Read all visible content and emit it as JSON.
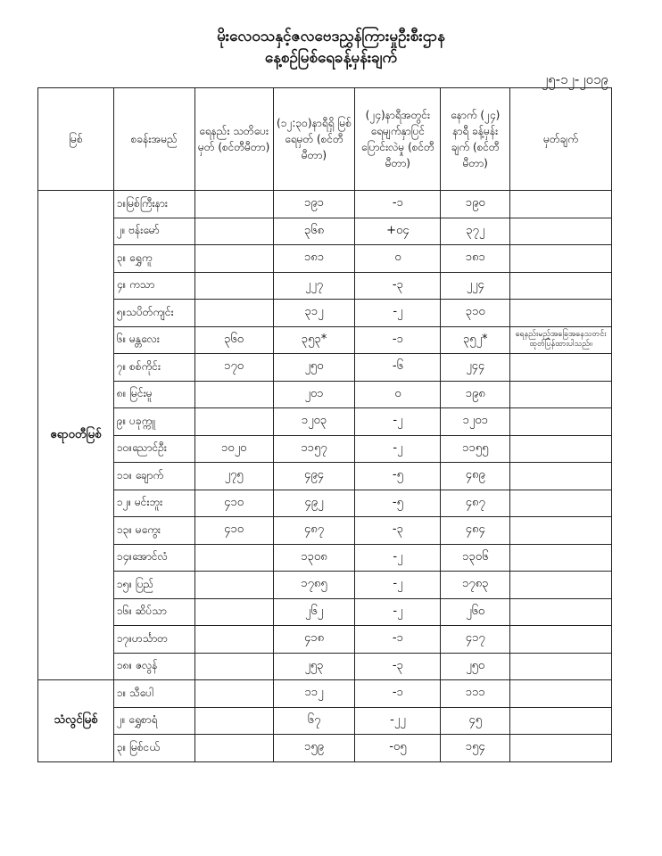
{
  "header": {
    "title": "မိုးလေဝသနှင့်ဇလဗေဒညွှန်ကြားမှုဦးစီးဌာန",
    "subtitle": "နေ့စဉ်မြစ်ရေခန့်မှန်းချက်",
    "date": "၂၅-၁၂-၂၀၁၉"
  },
  "columns": [
    "မြစ်",
    "စခန်းအမည်",
    "ရေနည်း သတိပေးမှတ် (စင်တီမီတာ)",
    "(၁၂:၃၀)နာရီရှိ မြစ်ရေမှတ် (စင်တီမီတာ)",
    "(၂၄)နာရီအတွင်း ရေမျက်နှာပြင် ပြောင်းလဲမှု (စင်တီမီတာ)",
    "နောက် (၂၄) နာရီ ခန့်မှန်းချက် (စင်တီမီတာ)",
    "မှတ်ချက်"
  ],
  "rivers": [
    {
      "name": "ဧရာဝတီမြစ်",
      "stations": [
        {
          "station": "၁။မြစ်ကြီးနား",
          "warning": "",
          "level": "၁၉၁",
          "change": "-၁",
          "forecast": "၁၉၀",
          "remark": ""
        },
        {
          "station": "၂။ ဗန်းမော်",
          "warning": "",
          "level": "၃၆၈",
          "change": "+၀၄",
          "forecast": "၃၇၂",
          "remark": ""
        },
        {
          "station": "၃။ ရွှေကူ",
          "warning": "",
          "level": "၁၈၁",
          "change": "၀",
          "forecast": "၁၈၁",
          "remark": ""
        },
        {
          "station": "၄။ ကသာ",
          "warning": "",
          "level": "၂၂၇",
          "change": "-၃",
          "forecast": "၂၂၄",
          "remark": ""
        },
        {
          "station": "၅။သပိတ်ကျင်း",
          "warning": "",
          "level": "၃၁၂",
          "change": "-၂",
          "forecast": "၃၁၀",
          "remark": ""
        },
        {
          "station": "၆။ မန္တလေး",
          "warning": "၃၆၀",
          "level": "၃၅၃*",
          "change": "-၁",
          "forecast": "၃၅၂*",
          "remark": "ရေနည်းမည့်အခြေအနေသတင်း ထုတ်ပြန်ထားပါသည်။"
        },
        {
          "station": "၇။ စစ်ကိုင်း",
          "warning": "၁၇၀",
          "level": "၂၅၀",
          "change": "-၆",
          "forecast": "၂၄၄",
          "remark": ""
        },
        {
          "station": "၈။ မြင်းမူ",
          "warning": "",
          "level": "၂၀၁",
          "change": "၀",
          "forecast": "၁၉၈",
          "remark": ""
        },
        {
          "station": "၉။ ပခုက္ကူ",
          "warning": "",
          "level": "၁၂၀၃",
          "change": "-၂",
          "forecast": "၁၂၀၁",
          "remark": ""
        },
        {
          "station": "၁၀။ညောင်ဦး",
          "warning": "၁၀၂၀",
          "level": "၁၁၅၇",
          "change": "-၂",
          "forecast": "၁၁၅၅",
          "remark": ""
        },
        {
          "station": "၁၁။ ချောက်",
          "warning": "၂၇၅",
          "level": "၄၉၄",
          "change": "-၅",
          "forecast": "၄၈၉",
          "remark": ""
        },
        {
          "station": "၁၂။ မင်းဘူး",
          "warning": "၄၁၀",
          "level": "၄၉၂",
          "change": "-၅",
          "forecast": "၄၈၇",
          "remark": ""
        },
        {
          "station": "၁၃။ မကွေး",
          "warning": "၄၁၀",
          "level": "၄၈၇",
          "change": "-၃",
          "forecast": "၄၈၄",
          "remark": ""
        },
        {
          "station": "၁၄။အောင်လံ",
          "warning": "",
          "level": "၁၃၀၈",
          "change": "-၂",
          "forecast": "၁၃၀၆",
          "remark": ""
        },
        {
          "station": "၁၅။ ပြည်",
          "warning": "",
          "level": "၁၇၈၅",
          "change": "-၂",
          "forecast": "၁၇၈၃",
          "remark": ""
        },
        {
          "station": "၁၆။ ဆိပ်သာ",
          "warning": "",
          "level": "၂၆၂",
          "change": "-၂",
          "forecast": "၂၆၀",
          "remark": ""
        },
        {
          "station": "၁၇။ဟင်္သာတ",
          "warning": "",
          "level": "၄၁၈",
          "change": "-၁",
          "forecast": "၄၁၇",
          "remark": ""
        },
        {
          "station": "၁၈။ ဇလွန်",
          "warning": "",
          "level": "၂၅၃",
          "change": "-၃",
          "forecast": "၂၅၀",
          "remark": ""
        }
      ]
    },
    {
      "name": "သံလွင်မြစ်",
      "stations": [
        {
          "station": "၁။ သီပေါ",
          "warning": "",
          "level": "၁၁၂",
          "change": "-၁",
          "forecast": "၁၁၁",
          "remark": ""
        },
        {
          "station": "၂။ ရွှေစာရံ",
          "warning": "",
          "level": "၆၇",
          "change": "-၂၂",
          "forecast": "၄၅",
          "remark": ""
        },
        {
          "station": "၃။ မြစ်ငယ်",
          "warning": "",
          "level": "၁၅၉",
          "change": "-၀၅",
          "forecast": "၁၅၄",
          "remark": ""
        }
      ]
    }
  ]
}
